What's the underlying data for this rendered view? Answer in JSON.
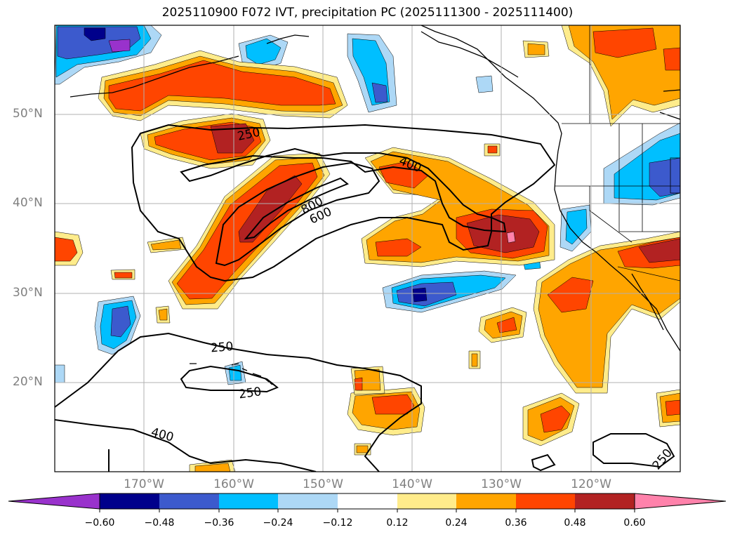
{
  "title": "2025110900 F072 IVT, precipitation PC (2025111300 - 2025111400)",
  "map": {
    "lat_ticks": [
      "50°N",
      "40°N",
      "30°N",
      "20°N"
    ],
    "lon_ticks": [
      "170°W",
      "160°W",
      "150°W",
      "140°W",
      "130°W",
      "120°W"
    ],
    "contour_labels": [
      "250",
      "400",
      "800",
      "600",
      "250",
      "250",
      "400",
      "250"
    ]
  },
  "colorbar": {
    "tick_labels": [
      "−0.60",
      "−0.48",
      "−0.36",
      "−0.24",
      "−0.12",
      "0.12",
      "0.24",
      "0.36",
      "0.48",
      "0.60"
    ],
    "colors": [
      "#9932cc",
      "#00008b",
      "#3c5acd",
      "#00bfff",
      "#add8f6",
      "#ffffff",
      "#ffec8b",
      "#ffa500",
      "#ff4500",
      "#b22222",
      "#ff82ab"
    ]
  }
}
